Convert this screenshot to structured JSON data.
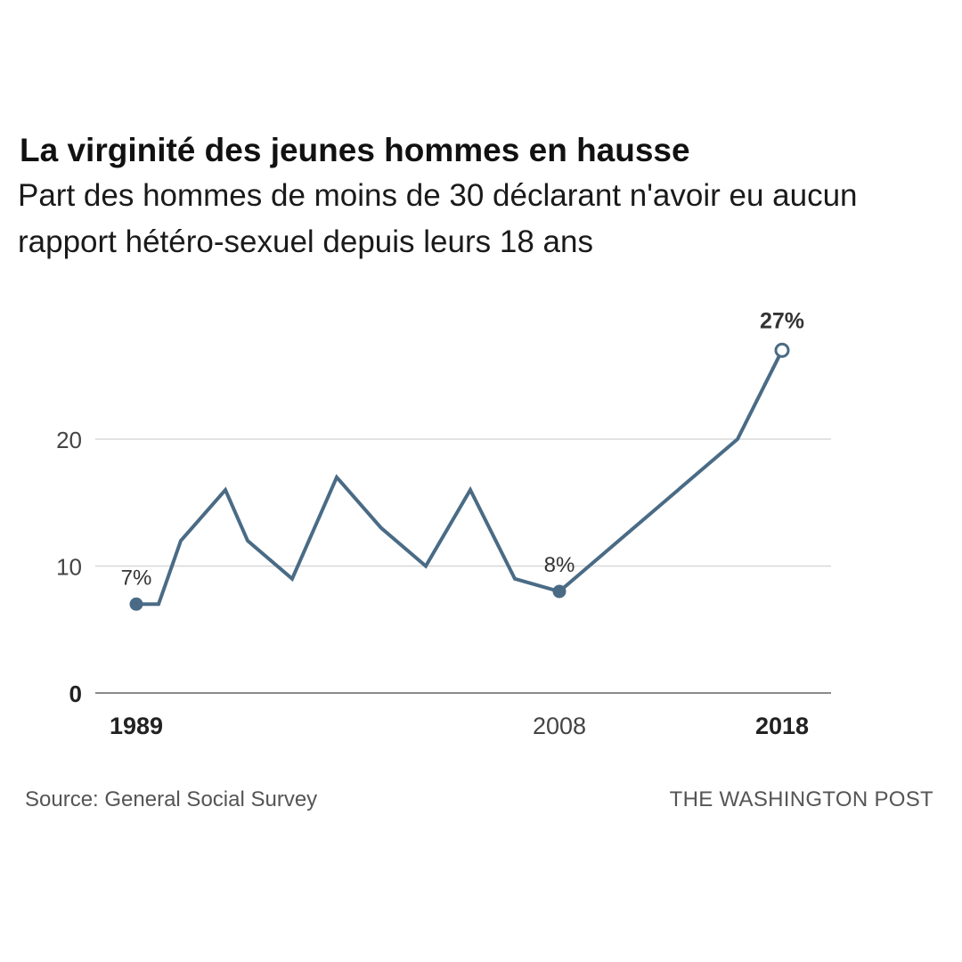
{
  "header": {
    "title": "La virginité des jeunes hommes en hausse",
    "subtitle_line1": "Part des hommes de moins de 30 déclarant n'avoir eu aucun",
    "subtitle_line2": "rapport hétéro-sexuel depuis leurs 18 ans"
  },
  "footer": {
    "source": "Source: General Social Survey",
    "credit": "THE WASHINGTON POST"
  },
  "chart_data": {
    "type": "line",
    "title": "La virginité des jeunes hommes en hausse",
    "subtitle": "Part des hommes de moins de 30 déclarant n'avoir eu aucun rapport hétéro-sexuel depuis leurs 18 ans",
    "xlabel": "",
    "ylabel": "",
    "ylim": [
      0,
      27
    ],
    "y_ticks": [
      0,
      10,
      20
    ],
    "x_tick_labels": [
      {
        "x": 1989,
        "label": "1989",
        "bold": true
      },
      {
        "x": 2008,
        "label": "2008",
        "bold": false
      },
      {
        "x": 2018,
        "label": "2018",
        "bold": true
      }
    ],
    "grid": true,
    "line_color": "#4a6b85",
    "series": [
      {
        "x": [
          1989,
          1990,
          1991,
          1993,
          1994,
          1996,
          1998,
          2000,
          2002,
          2004,
          2006,
          2008,
          2016,
          2018
        ],
        "values": [
          7,
          7,
          12,
          16,
          12,
          9,
          17,
          13,
          10,
          16,
          9,
          8,
          20,
          27
        ]
      }
    ],
    "annotations": [
      {
        "x": 1989,
        "y": 7,
        "label": "7%",
        "bold": false,
        "marker": "filled"
      },
      {
        "x": 2008,
        "y": 8,
        "label": "8%",
        "bold": false,
        "marker": "filled"
      },
      {
        "x": 2018,
        "y": 27,
        "label": "27%",
        "bold": true,
        "marker": "open"
      }
    ]
  }
}
